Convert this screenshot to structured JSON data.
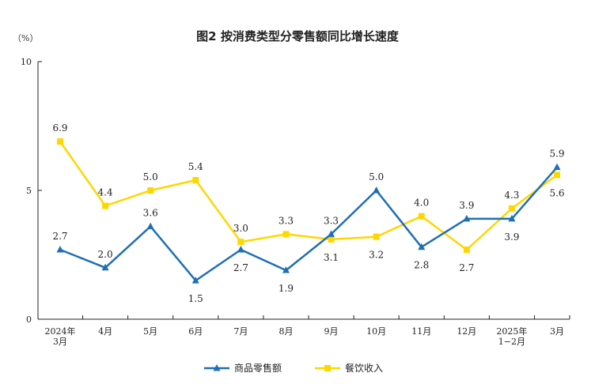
{
  "chart_data": {
    "type": "line",
    "title": "图2  按消费类型分零售额同比增长速度",
    "unit_label": "（%）",
    "categories": [
      [
        "2024年",
        "3月"
      ],
      [
        "4月"
      ],
      [
        "5月"
      ],
      [
        "6月"
      ],
      [
        "7月"
      ],
      [
        "8月"
      ],
      [
        "9月"
      ],
      [
        "10月"
      ],
      [
        "11月"
      ],
      [
        "12月"
      ],
      [
        "2025年",
        "1−2月"
      ],
      [
        "3月"
      ]
    ],
    "y_ticks": [
      "0",
      "5",
      "10"
    ],
    "ylim": [
      0,
      10
    ],
    "grid": false,
    "legend_position": "bottom-center",
    "series": [
      {
        "name": "商品零售额",
        "color": "#1f6fb5",
        "marker": "triangle",
        "values": [
          2.7,
          2.0,
          3.6,
          1.5,
          2.7,
          1.9,
          3.3,
          5.0,
          2.8,
          3.9,
          3.9,
          5.9
        ],
        "labels": [
          "2.7",
          "2.0",
          "3.6",
          "1.5",
          "2.7",
          "1.9",
          "3.3",
          "5.0",
          "2.8",
          "3.9",
          "3.9",
          "5.9"
        ],
        "label_pos": [
          "above",
          "above",
          "above",
          "below",
          "below",
          "below",
          "above",
          "above",
          "below",
          "above",
          "below",
          "above"
        ]
      },
      {
        "name": "餐饮收入",
        "color": "#ffd700",
        "marker": "square",
        "values": [
          6.9,
          4.4,
          5.0,
          5.4,
          3.0,
          3.3,
          3.1,
          3.2,
          4.0,
          2.7,
          4.3,
          5.6
        ],
        "labels": [
          "6.9",
          "4.4",
          "5.0",
          "5.4",
          "3.0",
          "3.3",
          "3.1",
          "3.2",
          "4.0",
          "2.7",
          "4.3",
          "5.6"
        ],
        "label_pos": [
          "above",
          "above",
          "above",
          "above",
          "above",
          "above",
          "below",
          "below",
          "above",
          "below",
          "above",
          "below"
        ]
      }
    ]
  }
}
